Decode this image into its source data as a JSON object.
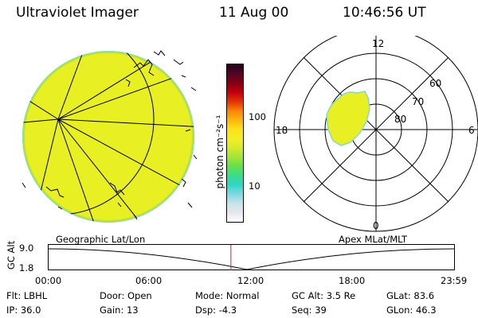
{
  "header": {
    "title": "Ultraviolet Imager",
    "date": "11 Aug 00",
    "time": "10:46:56 UT"
  },
  "colorbar": {
    "unit_label": "photon cm⁻²s⁻¹",
    "ticks": [
      "100",
      "10"
    ],
    "colors": [
      "#ffffff",
      "#e6e6ee",
      "#c8e2e8",
      "#7fd8e2",
      "#2ed6c4",
      "#3cdc8c",
      "#66e04c",
      "#a6e436",
      "#d6ea2c",
      "#f4ee26",
      "#fce21a",
      "#fcb40c",
      "#f88208",
      "#e43008",
      "#c00010",
      "#840010",
      "#500828",
      "#240018"
    ]
  },
  "polar_plot": {
    "labels": {
      "top": "12",
      "bottom": "0",
      "left": "18",
      "right": "6"
    },
    "lat_labels": [
      "60",
      "70",
      "80"
    ]
  },
  "panel_labels": {
    "geo": "Geographic Lat/Lon",
    "apex": "Apex MLat/MLT"
  },
  "altitude_plot": {
    "axis_label": "GC Alt",
    "y_ticks": [
      "9.0",
      "1.8"
    ],
    "x_ticks": [
      "00:00",
      "06:00",
      "12:00",
      "18:00",
      "23:59"
    ],
    "current_time_marker": "10:46:56"
  },
  "info": {
    "row1": [
      {
        "label": "Flt:",
        "value": "LBHL"
      },
      {
        "label": "Door:",
        "value": "Open"
      },
      {
        "label": "Mode:",
        "value": "Normal"
      },
      {
        "label": "GC Alt:",
        "value": "3.5 Re"
      },
      {
        "label": "GLat:",
        "value": "83.6"
      }
    ],
    "row2": [
      {
        "label": "IP:",
        "value": "36.0"
      },
      {
        "label": "Gain:",
        "value": "13"
      },
      {
        "label": "Dsp:",
        "value": "-4.3"
      },
      {
        "label": "Seq:",
        "value": "39"
      },
      {
        "label": "GLon:",
        "value": "46.3"
      }
    ]
  }
}
